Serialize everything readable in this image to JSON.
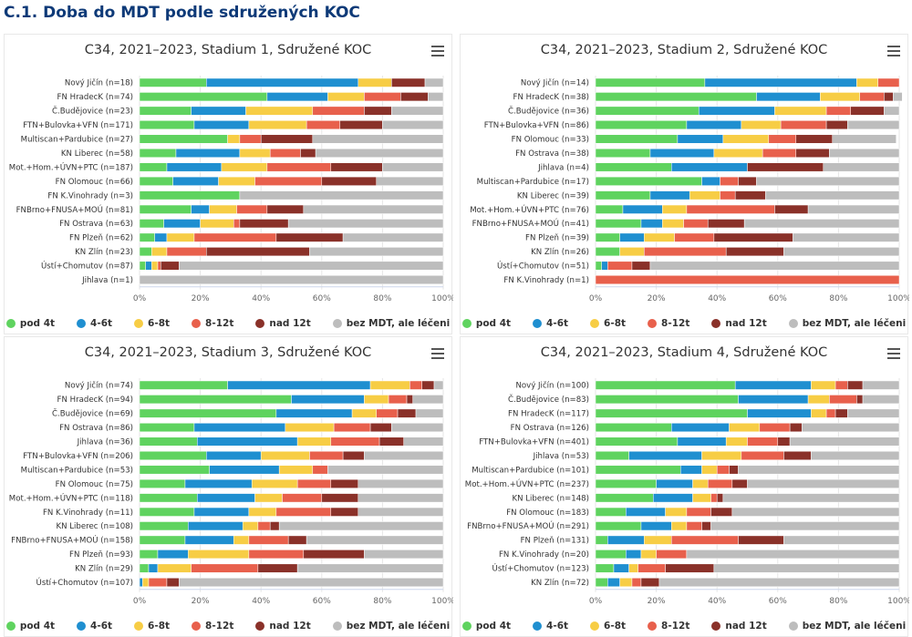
{
  "page": {
    "title": "C.1. Doba do MDT podle sdružených KOC"
  },
  "colors": [
    "#5fd35f",
    "#1f8fd0",
    "#f7cd45",
    "#e8604c",
    "#8a3129",
    "#bdbdbd"
  ],
  "legend": [
    "pod 4t",
    "4-6t",
    "6-8t",
    "8-12t",
    "nad 12t",
    "bez MDT, ale léčeni"
  ],
  "chart_data": [
    {
      "type": "bar",
      "orientation": "horizontal",
      "stacked": "percent",
      "title": "C34, 2021–2023, Stadium 1, Sdružené KOC",
      "x_ticks": [
        "0%",
        "20%",
        "40%",
        "60%",
        "80%",
        "100%"
      ],
      "xlim": [
        0,
        100
      ],
      "legend_position": "bottom",
      "categories": [
        "Nový Jičín (n=18)",
        "FN HradecK (n=74)",
        "Č.Budějovice (n=23)",
        "FTN+Bulovka+VFN (n=171)",
        "Multiscan+Pardubice (n=27)",
        "KN Liberec (n=58)",
        "Mot.+Hom.+ÚVN+PTC (n=187)",
        "FN Olomouc (n=66)",
        "FN K.Vinohrady (n=3)",
        "FNBrno+FNUSA+MOÚ (n=81)",
        "FN Ostrava (n=63)",
        "FN Plzeň (n=62)",
        "KN Zlín (n=23)",
        "Ústí+Chomutov (n=87)",
        "Jihlava (n=1)"
      ],
      "series": [
        {
          "name": "pod 4t",
          "values": [
            22,
            42,
            17,
            18,
            29,
            12,
            9,
            11,
            33,
            17,
            8,
            5,
            4,
            2,
            0
          ]
        },
        {
          "name": "4-6t",
          "values": [
            50,
            20,
            18,
            18,
            0,
            21,
            18,
            15,
            0,
            6,
            12,
            4,
            0,
            2,
            0
          ]
        },
        {
          "name": "6-8t",
          "values": [
            11,
            12,
            22,
            19,
            4,
            10,
            15,
            12,
            0,
            9,
            11,
            9,
            5,
            2,
            0
          ]
        },
        {
          "name": "8-12t",
          "values": [
            0,
            12,
            17,
            11,
            7,
            10,
            21,
            22,
            0,
            10,
            2,
            27,
            13,
            1,
            0
          ]
        },
        {
          "name": "nad 12t",
          "values": [
            11,
            9,
            9,
            14,
            17,
            5,
            17,
            18,
            0,
            12,
            16,
            22,
            34,
            6,
            0
          ]
        },
        {
          "name": "bez MDT, ale léčeni",
          "values": [
            6,
            5,
            17,
            20,
            43,
            42,
            20,
            22,
            67,
            46,
            51,
            33,
            44,
            87,
            100
          ]
        }
      ]
    },
    {
      "type": "bar",
      "orientation": "horizontal",
      "stacked": "percent",
      "title": "C34, 2021–2023, Stadium 2, Sdružené KOC",
      "x_ticks": [
        "0%",
        "20%",
        "40%",
        "60%",
        "80%",
        "100%"
      ],
      "xlim": [
        0,
        100
      ],
      "legend_position": "bottom",
      "categories": [
        "Nový Jičín (n=14)",
        "FN HradecK (n=38)",
        "Č.Budějovice (n=36)",
        "FTN+Bulovka+VFN (n=86)",
        "FN Olomouc (n=33)",
        "FN Ostrava (n=38)",
        "Jihlava (n=4)",
        "Multiscan+Pardubice (n=17)",
        "KN Liberec (n=39)",
        "Mot.+Hom.+ÚVN+PTC (n=76)",
        "FNBrno+FNUSA+MOÚ (n=41)",
        "FN Plzeň (n=39)",
        "KN Zlín (n=26)",
        "Ústí+Chomutov (n=51)",
        "FN K.Vinohrady (n=1)"
      ],
      "series": [
        {
          "name": "pod 4t",
          "values": [
            36,
            53,
            34,
            30,
            27,
            18,
            25,
            35,
            18,
            9,
            15,
            8,
            8,
            2,
            0
          ]
        },
        {
          "name": "4-6t",
          "values": [
            50,
            21,
            25,
            18,
            15,
            21,
            25,
            6,
            13,
            13,
            7,
            8,
            0,
            2,
            0
          ]
        },
        {
          "name": "6-8t",
          "values": [
            7,
            13,
            17,
            13,
            15,
            16,
            0,
            0,
            10,
            8,
            7,
            10,
            8,
            0,
            0
          ]
        },
        {
          "name": "8-12t",
          "values": [
            7,
            8,
            8,
            15,
            9,
            11,
            0,
            6,
            5,
            29,
            8,
            13,
            27,
            8,
            100
          ]
        },
        {
          "name": "nad 12t",
          "values": [
            0,
            3,
            11,
            7,
            12,
            11,
            25,
            6,
            10,
            11,
            12,
            26,
            19,
            6,
            0
          ]
        },
        {
          "name": "bez MDT, ale léčeni",
          "values": [
            0,
            3,
            5,
            17,
            21,
            23,
            25,
            47,
            44,
            30,
            51,
            35,
            38,
            82,
            0
          ]
        }
      ]
    },
    {
      "type": "bar",
      "orientation": "horizontal",
      "stacked": "percent",
      "title": "C34, 2021–2023, Stadium 3, Sdružené KOC",
      "x_ticks": [
        "0%",
        "20%",
        "40%",
        "60%",
        "80%",
        "100%"
      ],
      "xlim": [
        0,
        100
      ],
      "legend_position": "bottom",
      "categories": [
        "Nový Jičín (n=74)",
        "FN HradecK (n=94)",
        "Č.Budějovice (n=69)",
        "FN Ostrava (n=86)",
        "Jihlava (n=36)",
        "FTN+Bulovka+VFN (n=206)",
        "Multiscan+Pardubice (n=53)",
        "FN Olomouc (n=75)",
        "Mot.+Hom.+ÚVN+PTC (n=118)",
        "FN K.Vinohrady (n=11)",
        "KN Liberec (n=108)",
        "FNBrno+FNUSA+MOÚ (n=158)",
        "FN Plzeň (n=93)",
        "KN Zlín (n=29)",
        "Ústí+Chomutov (n=107)"
      ],
      "series": [
        {
          "name": "pod 4t",
          "values": [
            29,
            50,
            45,
            18,
            19,
            22,
            23,
            15,
            19,
            18,
            16,
            15,
            6,
            3,
            0
          ]
        },
        {
          "name": "4-6t",
          "values": [
            47,
            24,
            25,
            30,
            33,
            18,
            23,
            22,
            19,
            18,
            18,
            16,
            10,
            3,
            1
          ]
        },
        {
          "name": "6-8t",
          "values": [
            13,
            8,
            8,
            16,
            11,
            16,
            11,
            15,
            9,
            9,
            5,
            5,
            20,
            11,
            2
          ]
        },
        {
          "name": "8-12t",
          "values": [
            4,
            6,
            7,
            12,
            16,
            11,
            5,
            11,
            13,
            18,
            4,
            13,
            18,
            22,
            6
          ]
        },
        {
          "name": "nad 12t",
          "values": [
            4,
            2,
            6,
            7,
            8,
            7,
            0,
            9,
            12,
            9,
            3,
            6,
            20,
            13,
            4
          ]
        },
        {
          "name": "bez MDT, ale léčeni",
          "values": [
            3,
            10,
            9,
            17,
            13,
            26,
            38,
            28,
            28,
            28,
            54,
            45,
            26,
            48,
            87
          ]
        }
      ]
    },
    {
      "type": "bar",
      "orientation": "horizontal",
      "stacked": "percent",
      "title": "C34, 2021–2023, Stadium 4, Sdružené KOC",
      "x_ticks": [
        "0%",
        "20%",
        "40%",
        "60%",
        "80%",
        "100%"
      ],
      "xlim": [
        0,
        100
      ],
      "legend_position": "bottom",
      "categories": [
        "Nový Jičín (n=100)",
        "Č.Budějovice (n=83)",
        "FN HradecK (n=117)",
        "FN Ostrava (n=126)",
        "FTN+Bulovka+VFN (n=401)",
        "Jihlava (n=53)",
        "Multiscan+Pardubice (n=101)",
        "Mot.+Hom.+ÚVN+PTC (n=237)",
        "KN Liberec (n=148)",
        "FN Olomouc (n=183)",
        "FNBrno+FNUSA+MOÚ (n=291)",
        "FN Plzeň (n=131)",
        "FN K.Vinohrady (n=20)",
        "Ústí+Chomutov (n=123)",
        "KN Zlín (n=72)"
      ],
      "series": [
        {
          "name": "pod 4t",
          "values": [
            46,
            47,
            50,
            25,
            27,
            11,
            28,
            20,
            19,
            10,
            15,
            4,
            10,
            6,
            4
          ]
        },
        {
          "name": "4-6t",
          "values": [
            25,
            23,
            21,
            19,
            16,
            24,
            7,
            12,
            13,
            13,
            10,
            12,
            5,
            5,
            4
          ]
        },
        {
          "name": "6-8t",
          "values": [
            8,
            7,
            5,
            10,
            7,
            13,
            5,
            5,
            6,
            7,
            5,
            9,
            5,
            3,
            4
          ]
        },
        {
          "name": "8-12t",
          "values": [
            4,
            9,
            3,
            10,
            10,
            14,
            4,
            8,
            2,
            8,
            5,
            22,
            10,
            9,
            3
          ]
        },
        {
          "name": "nad 12t",
          "values": [
            5,
            2,
            4,
            4,
            4,
            9,
            3,
            5,
            2,
            7,
            3,
            15,
            0,
            16,
            6
          ]
        },
        {
          "name": "bez MDT, ale léčeni",
          "values": [
            12,
            12,
            17,
            32,
            36,
            29,
            53,
            50,
            58,
            55,
            62,
            38,
            70,
            61,
            79
          ]
        }
      ]
    }
  ]
}
